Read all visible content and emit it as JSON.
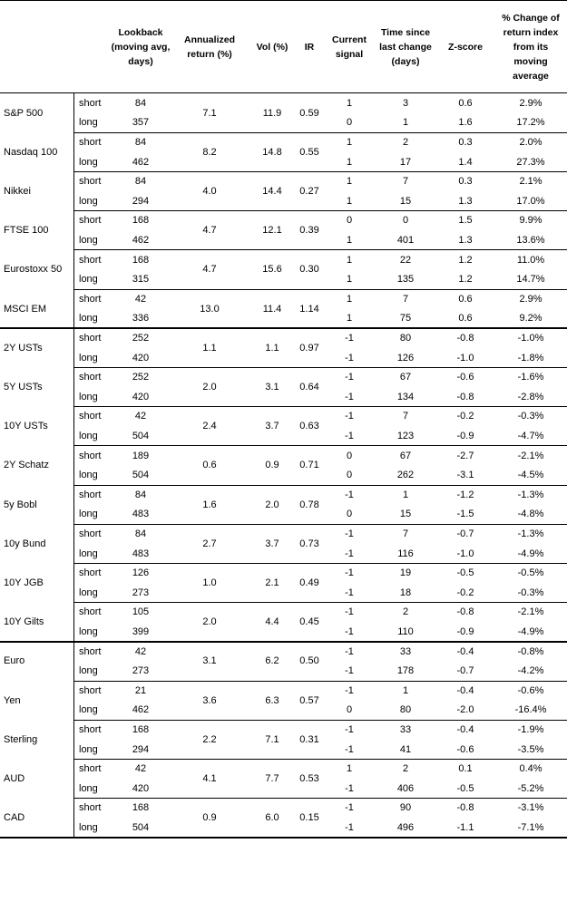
{
  "table": {
    "columns": [
      "Lookback (moving avg, days)",
      "Annualized return (%)",
      "Vol (%)",
      "IR",
      "Current signal",
      "Time since last change (days)",
      "Z-score",
      "% Change of return index from its moving average"
    ],
    "groups": [
      {
        "rows": [
          {
            "name": "S&P 500",
            "ann": "7.1",
            "vol": "11.9",
            "ir": "0.59",
            "sub": [
              [
                "short",
                "84",
                "1",
                "3",
                "0.6",
                "2.9%"
              ],
              [
                "long",
                "357",
                "0",
                "1",
                "1.6",
                "17.2%"
              ]
            ]
          },
          {
            "name": "Nasdaq 100",
            "ann": "8.2",
            "vol": "14.8",
            "ir": "0.55",
            "sub": [
              [
                "short",
                "84",
                "1",
                "2",
                "0.3",
                "2.0%"
              ],
              [
                "long",
                "462",
                "1",
                "17",
                "1.4",
                "27.3%"
              ]
            ]
          },
          {
            "name": "Nikkei",
            "ann": "4.0",
            "vol": "14.4",
            "ir": "0.27",
            "sub": [
              [
                "short",
                "84",
                "1",
                "7",
                "0.3",
                "2.1%"
              ],
              [
                "long",
                "294",
                "1",
                "15",
                "1.3",
                "17.0%"
              ]
            ]
          },
          {
            "name": "FTSE 100",
            "ann": "4.7",
            "vol": "12.1",
            "ir": "0.39",
            "sub": [
              [
                "short",
                "168",
                "0",
                "0",
                "1.5",
                "9.9%"
              ],
              [
                "long",
                "462",
                "1",
                "401",
                "1.3",
                "13.6%"
              ]
            ]
          },
          {
            "name": "Eurostoxx 50",
            "ann": "4.7",
            "vol": "15.6",
            "ir": "0.30",
            "sub": [
              [
                "short",
                "168",
                "1",
                "22",
                "1.2",
                "11.0%"
              ],
              [
                "long",
                "315",
                "1",
                "135",
                "1.2",
                "14.7%"
              ]
            ]
          },
          {
            "name": "MSCI EM",
            "ann": "13.0",
            "vol": "11.4",
            "ir": "1.14",
            "sub": [
              [
                "short",
                "42",
                "1",
                "7",
                "0.6",
                "2.9%"
              ],
              [
                "long",
                "336",
                "1",
                "75",
                "0.6",
                "9.2%"
              ]
            ]
          }
        ]
      },
      {
        "rows": [
          {
            "name": "2Y USTs",
            "ann": "1.1",
            "vol": "1.1",
            "ir": "0.97",
            "sub": [
              [
                "short",
                "252",
                "-1",
                "80",
                "-0.8",
                "-1.0%"
              ],
              [
                "long",
                "420",
                "-1",
                "126",
                "-1.0",
                "-1.8%"
              ]
            ]
          },
          {
            "name": "5Y USTs",
            "ann": "2.0",
            "vol": "3.1",
            "ir": "0.64",
            "sub": [
              [
                "short",
                "252",
                "-1",
                "67",
                "-0.6",
                "-1.6%"
              ],
              [
                "long",
                "420",
                "-1",
                "134",
                "-0.8",
                "-2.8%"
              ]
            ]
          },
          {
            "name": "10Y USTs",
            "ann": "2.4",
            "vol": "3.7",
            "ir": "0.63",
            "sub": [
              [
                "short",
                "42",
                "-1",
                "7",
                "-0.2",
                "-0.3%"
              ],
              [
                "long",
                "504",
                "-1",
                "123",
                "-0.9",
                "-4.7%"
              ]
            ]
          },
          {
            "name": "2Y Schatz",
            "ann": "0.6",
            "vol": "0.9",
            "ir": "0.71",
            "sub": [
              [
                "short",
                "189",
                "0",
                "67",
                "-2.7",
                "-2.1%"
              ],
              [
                "long",
                "504",
                "0",
                "262",
                "-3.1",
                "-4.5%"
              ]
            ]
          },
          {
            "name": "5y Bobl",
            "ann": "1.6",
            "vol": "2.0",
            "ir": "0.78",
            "sub": [
              [
                "short",
                "84",
                "-1",
                "1",
                "-1.2",
                "-1.3%"
              ],
              [
                "long",
                "483",
                "0",
                "15",
                "-1.5",
                "-4.8%"
              ]
            ]
          },
          {
            "name": "10y Bund",
            "ann": "2.7",
            "vol": "3.7",
            "ir": "0.73",
            "sub": [
              [
                "short",
                "84",
                "-1",
                "7",
                "-0.7",
                "-1.3%"
              ],
              [
                "long",
                "483",
                "-1",
                "116",
                "-1.0",
                "-4.9%"
              ]
            ]
          },
          {
            "name": "10Y JGB",
            "ann": "1.0",
            "vol": "2.1",
            "ir": "0.49",
            "sub": [
              [
                "short",
                "126",
                "-1",
                "19",
                "-0.5",
                "-0.5%"
              ],
              [
                "long",
                "273",
                "-1",
                "18",
                "-0.2",
                "-0.3%"
              ]
            ]
          },
          {
            "name": "10Y Gilts",
            "ann": "2.0",
            "vol": "4.4",
            "ir": "0.45",
            "sub": [
              [
                "short",
                "105",
                "-1",
                "2",
                "-0.8",
                "-2.1%"
              ],
              [
                "long",
                "399",
                "-1",
                "110",
                "-0.9",
                "-4.9%"
              ]
            ]
          }
        ]
      },
      {
        "rows": [
          {
            "name": "Euro",
            "ann": "3.1",
            "vol": "6.2",
            "ir": "0.50",
            "sub": [
              [
                "short",
                "42",
                "-1",
                "33",
                "-0.4",
                "-0.8%"
              ],
              [
                "long",
                "273",
                "-1",
                "178",
                "-0.7",
                "-4.2%"
              ]
            ]
          },
          {
            "name": "Yen",
            "ann": "3.6",
            "vol": "6.3",
            "ir": "0.57",
            "sub": [
              [
                "short",
                "21",
                "-1",
                "1",
                "-0.4",
                "-0.6%"
              ],
              [
                "long",
                "462",
                "0",
                "80",
                "-2.0",
                "-16.4%"
              ]
            ]
          },
          {
            "name": "Sterling",
            "ann": "2.2",
            "vol": "7.1",
            "ir": "0.31",
            "sub": [
              [
                "short",
                "168",
                "-1",
                "33",
                "-0.4",
                "-1.9%"
              ],
              [
                "long",
                "294",
                "-1",
                "41",
                "-0.6",
                "-3.5%"
              ]
            ]
          },
          {
            "name": "AUD",
            "ann": "4.1",
            "vol": "7.7",
            "ir": "0.53",
            "sub": [
              [
                "short",
                "42",
                "1",
                "2",
                "0.1",
                "0.4%"
              ],
              [
                "long",
                "420",
                "-1",
                "406",
                "-0.5",
                "-5.2%"
              ]
            ]
          },
          {
            "name": "CAD",
            "ann": "0.9",
            "vol": "6.0",
            "ir": "0.15",
            "sub": [
              [
                "short",
                "168",
                "-1",
                "90",
                "-0.8",
                "-3.1%"
              ],
              [
                "long",
                "504",
                "-1",
                "496",
                "-1.1",
                "-7.1%"
              ]
            ]
          }
        ]
      }
    ]
  }
}
